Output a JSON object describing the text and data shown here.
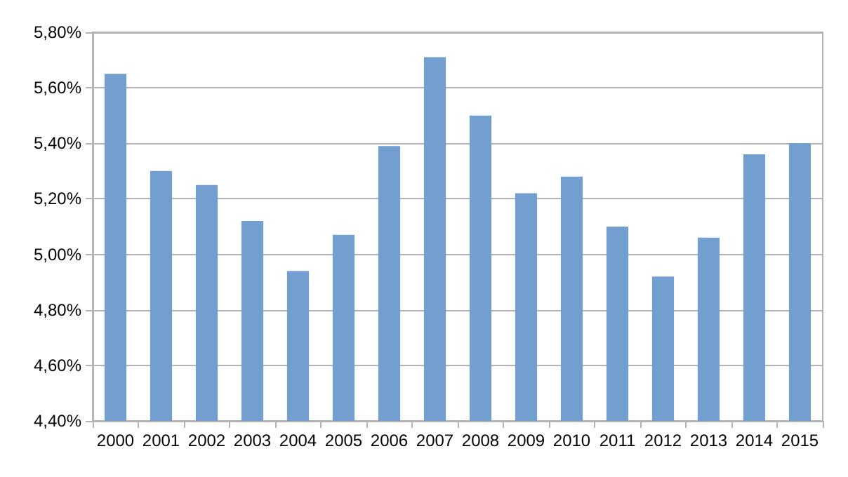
{
  "chart_data": {
    "type": "bar",
    "categories": [
      "2000",
      "2001",
      "2002",
      "2003",
      "2004",
      "2005",
      "2006",
      "2007",
      "2008",
      "2009",
      "2010",
      "2011",
      "2012",
      "2013",
      "2014",
      "2015"
    ],
    "values": [
      5.65,
      5.3,
      5.25,
      5.12,
      4.94,
      5.07,
      5.39,
      5.71,
      5.5,
      5.22,
      5.28,
      5.1,
      4.92,
      5.06,
      5.36,
      5.4
    ],
    "color": "#729fcf",
    "ylim": [
      4.4,
      5.8
    ],
    "yticks": [
      {
        "value": 4.4,
        "label": "4,40%"
      },
      {
        "value": 4.6,
        "label": "4,60%"
      },
      {
        "value": 4.8,
        "label": "4,80%"
      },
      {
        "value": 5.0,
        "label": "5,00%"
      },
      {
        "value": 5.2,
        "label": "5,20%"
      },
      {
        "value": 5.4,
        "label": "5,40%"
      },
      {
        "value": 5.6,
        "label": "5,60%"
      },
      {
        "value": 5.8,
        "label": "5,80%"
      }
    ],
    "grid": "y"
  }
}
